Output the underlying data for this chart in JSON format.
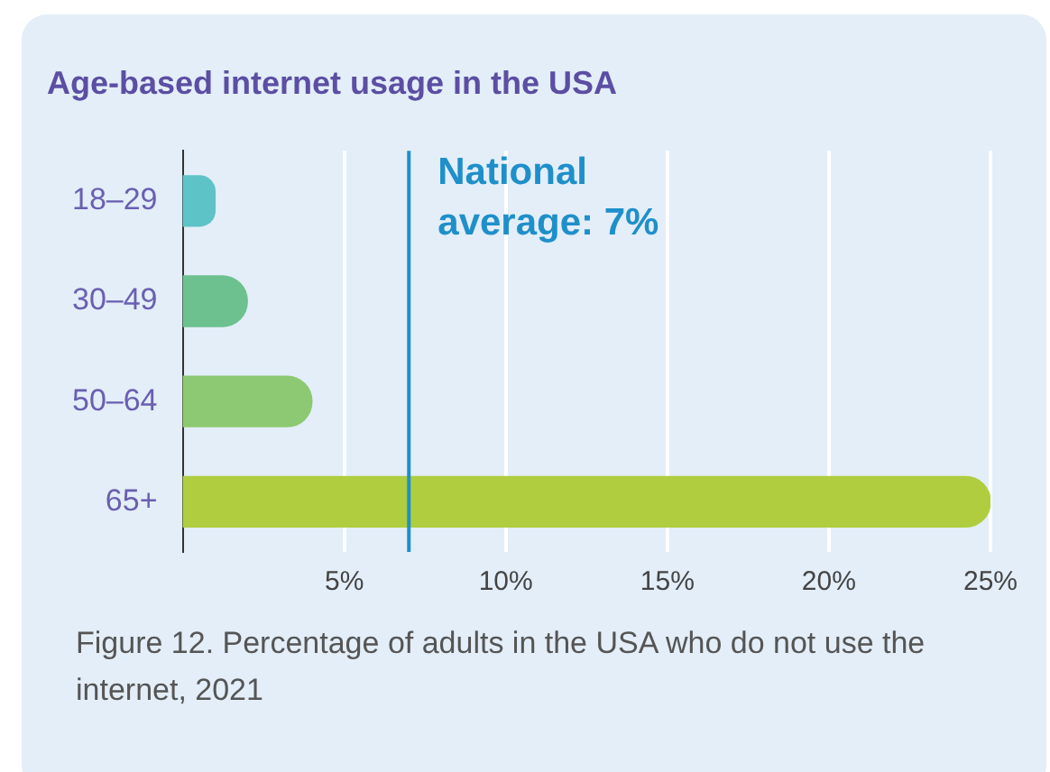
{
  "chart_data": {
    "type": "bar",
    "orientation": "horizontal",
    "title": "Age-based internet usage in the USA",
    "categories": [
      "18–29",
      "30–49",
      "50–64",
      "65+"
    ],
    "values": [
      1,
      2,
      4,
      25
    ],
    "colors": [
      "#5dc3c6",
      "#6cc18e",
      "#8dc872",
      "#afcd3f"
    ],
    "xlim": [
      0,
      25
    ],
    "xticks": [
      {
        "value": 5,
        "label": "5%"
      },
      {
        "value": 10,
        "label": "10%"
      },
      {
        "value": 15,
        "label": "15%"
      },
      {
        "value": 20,
        "label": "20%"
      },
      {
        "value": 25,
        "label": "25%"
      }
    ],
    "grid": "x",
    "legend": false,
    "ref_lines": [
      {
        "axis": "x",
        "value": 7,
        "label": "National average: 7%",
        "color": "#1f8fca"
      }
    ],
    "annotations": [
      "Figure 12. Percentage of adults in the USA who do not use the internet, 2021"
    ]
  }
}
